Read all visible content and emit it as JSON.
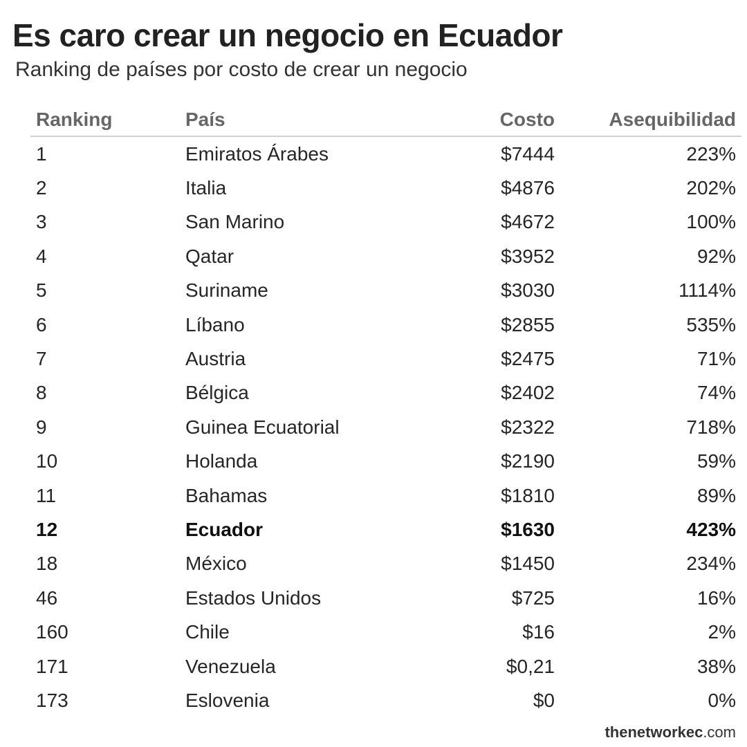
{
  "header": {
    "title": "Es caro crear un negocio en Ecuador",
    "subtitle": "Ranking de países por costo de crear un negocio"
  },
  "chart_data": {
    "type": "table",
    "title": "Es caro crear un negocio en Ecuador",
    "subtitle": "Ranking de países por costo de crear un negocio",
    "columns": [
      "Ranking",
      "País",
      "Costo",
      "Asequibilidad"
    ],
    "rows": [
      {
        "rank": "1",
        "country": "Emiratos Árabes",
        "cost": "$7444",
        "affordability": "223%"
      },
      {
        "rank": "2",
        "country": "Italia",
        "cost": "$4876",
        "affordability": "202%"
      },
      {
        "rank": "3",
        "country": "San Marino",
        "cost": "$4672",
        "affordability": "100%"
      },
      {
        "rank": "4",
        "country": "Qatar",
        "cost": "$3952",
        "affordability": "92%"
      },
      {
        "rank": "5",
        "country": "Suriname",
        "cost": "$3030",
        "affordability": "1114%"
      },
      {
        "rank": "6",
        "country": "Líbano",
        "cost": "$2855",
        "affordability": "535%"
      },
      {
        "rank": "7",
        "country": "Austria",
        "cost": "$2475",
        "affordability": "71%"
      },
      {
        "rank": "8",
        "country": "Bélgica",
        "cost": "$2402",
        "affordability": "74%"
      },
      {
        "rank": "9",
        "country": "Guinea Ecuatorial",
        "cost": "$2322",
        "affordability": "718%"
      },
      {
        "rank": "10",
        "country": "Holanda",
        "cost": "$2190",
        "affordability": "59%"
      },
      {
        "rank": "11",
        "country": "Bahamas",
        "cost": "$1810",
        "affordability": "89%"
      },
      {
        "rank": "12",
        "country": "Ecuador",
        "cost": "$1630",
        "affordability": "423%",
        "highlight": true
      },
      {
        "rank": "18",
        "country": "México",
        "cost": "$1450",
        "affordability": "234%"
      },
      {
        "rank": "46",
        "country": "Estados Unidos",
        "cost": "$725",
        "affordability": "16%"
      },
      {
        "rank": "160",
        "country": "Chile",
        "cost": "$16",
        "affordability": "2%"
      },
      {
        "rank": "171",
        "country": "Venezuela",
        "cost": "$0,21",
        "affordability": "38%"
      },
      {
        "rank": "173",
        "country": "Eslovenia",
        "cost": "$0",
        "affordability": "0%"
      }
    ]
  },
  "footer": {
    "credit_bold": "thenetworkec",
    "credit_rest": ".com"
  }
}
